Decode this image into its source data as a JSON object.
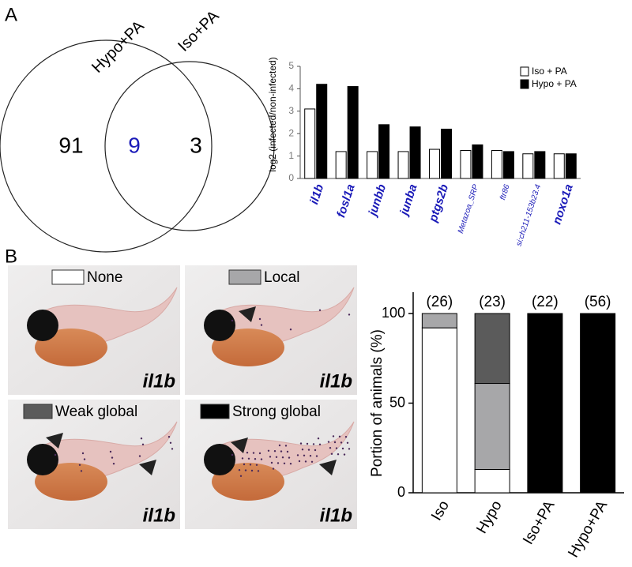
{
  "panel_labels": [
    "A",
    "B"
  ],
  "venn": {
    "sets": [
      "Hypo+PA",
      "Iso+PA"
    ],
    "counts": [
      "91",
      "9",
      "3"
    ]
  },
  "images": [
    {
      "label": "il1b"
    },
    {
      "label": "il1b"
    },
    {
      "label": "il1b"
    },
    {
      "label": "il1b"
    }
  ],
  "chart_data": [
    {
      "type": "bar",
      "ylabel": "log2 (infected/non-infected)",
      "categories": [
        "il1b",
        "fosl1a",
        "junbb",
        "junba",
        "ptgs2b",
        "Metazoa_SRP",
        "ftr86",
        "si:ch211-153b23.4",
        "noxo1a"
      ],
      "series": [
        {
          "name": "Iso + PA",
          "color": "#ffffff",
          "values": [
            3.1,
            1.2,
            1.2,
            1.2,
            1.3,
            1.25,
            1.25,
            1.1,
            1.1
          ]
        },
        {
          "name": "Hypo + PA",
          "color": "#000000",
          "values": [
            4.2,
            4.1,
            2.4,
            2.3,
            2.2,
            1.5,
            1.2,
            1.2,
            1.1
          ]
        }
      ],
      "ylim": [
        0,
        5
      ],
      "yticks": [
        0,
        1,
        2,
        3,
        4,
        5
      ],
      "legend": "top-right"
    },
    {
      "type": "stacked_bar",
      "ylabel": "Portion of animals (%)",
      "categories": [
        "Iso",
        "Hypo",
        "Iso+PA",
        "Hypo+PA"
      ],
      "group_labels": [
        "(26)",
        "(23)",
        "(22)",
        "(56)"
      ],
      "series": [
        {
          "name": "None",
          "color": "#ffffff",
          "values": [
            92,
            13,
            0,
            0
          ]
        },
        {
          "name": "Local",
          "color": "#a7a7a9",
          "values": [
            8,
            48,
            0,
            0
          ]
        },
        {
          "name": "Weak global",
          "color": "#5b5b5b",
          "values": [
            0,
            39,
            0,
            0
          ]
        },
        {
          "name": "Strong global",
          "color": "#000000",
          "values": [
            0,
            0,
            100,
            100
          ]
        }
      ],
      "ylim": [
        0,
        100
      ],
      "yticks": [
        0,
        50,
        100
      ]
    }
  ]
}
